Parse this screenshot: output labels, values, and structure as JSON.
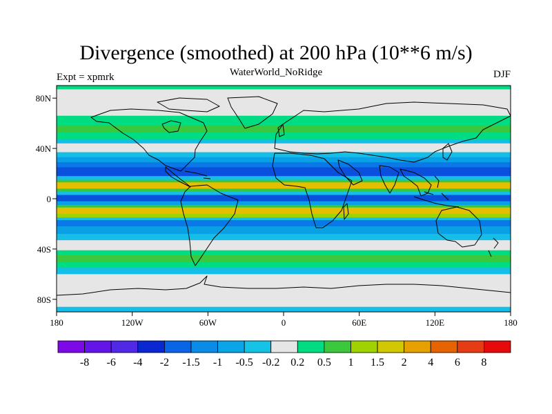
{
  "title": "Divergence (smoothed) at 200 hPa (10**6 m/s)",
  "subtitle_left": "Expt = xpmrk",
  "subtitle_center": "WaterWorld_NoRidge",
  "subtitle_right": "DJF",
  "map": {
    "projection": "cylindrical-equidistant",
    "lon_range": [
      -180,
      180
    ],
    "lat_range": [
      -90,
      90
    ],
    "lon_ticks": [
      {
        "value": -180,
        "label": "180"
      },
      {
        "value": -120,
        "label": "120W"
      },
      {
        "value": -60,
        "label": "60W"
      },
      {
        "value": 0,
        "label": "0"
      },
      {
        "value": 60,
        "label": "60E"
      },
      {
        "value": 120,
        "label": "120E"
      },
      {
        "value": 180,
        "label": "180"
      }
    ],
    "lat_ticks": [
      {
        "value": 80,
        "label": "80N"
      },
      {
        "value": 40,
        "label": "40N"
      },
      {
        "value": 0,
        "label": "0"
      },
      {
        "value": -40,
        "label": "40S"
      },
      {
        "value": -80,
        "label": "80S"
      }
    ],
    "bands": [
      {
        "lat_top": 90,
        "lat_bottom": 87,
        "level": "0.2 to 0.5",
        "color": "#00dc82"
      },
      {
        "lat_top": 87,
        "lat_bottom": 79,
        "level": "-0.2 to 0.2",
        "color": "#e6e6e6"
      },
      {
        "lat_top": 79,
        "lat_bottom": 66,
        "level": "-0.2 to 0.2",
        "color": "#e6e6e6"
      },
      {
        "lat_top": 66,
        "lat_bottom": 58,
        "level": "0.2 to 0.5",
        "color": "#00dc82"
      },
      {
        "lat_top": 58,
        "lat_bottom": 53,
        "level": "0.5 to 1",
        "color": "#3cc83c"
      },
      {
        "lat_top": 53,
        "lat_bottom": 47,
        "level": "0.2 to 0.5",
        "color": "#00dc82"
      },
      {
        "lat_top": 47,
        "lat_bottom": 44,
        "level": "-0.5 to -0.2",
        "color": "#14bee6"
      },
      {
        "lat_top": 44,
        "lat_bottom": 37,
        "level": "-0.2 to 0.2",
        "color": "#e6e6e6"
      },
      {
        "lat_top": 37,
        "lat_bottom": 33,
        "level": "-0.5 to -0.2",
        "color": "#14bee6"
      },
      {
        "lat_top": 33,
        "lat_bottom": 29,
        "level": "-1 to -0.5",
        "color": "#0aa0e6"
      },
      {
        "lat_top": 29,
        "lat_bottom": 25,
        "level": "-1.5 to -1",
        "color": "#0a78e6"
      },
      {
        "lat_top": 25,
        "lat_bottom": 18,
        "level": "-2 to -1.5",
        "color": "#0a50dc"
      },
      {
        "lat_top": 18,
        "lat_bottom": 15,
        "level": "-0.5 to -0.2",
        "color": "#14bee6"
      },
      {
        "lat_top": 15,
        "lat_bottom": 13,
        "level": "0.5 to 1",
        "color": "#3cc83c"
      },
      {
        "lat_top": 13,
        "lat_bottom": 8,
        "level": "1.5 to 2",
        "color": "#e6be00"
      },
      {
        "lat_top": 8,
        "lat_bottom": 6,
        "level": "0.5 to 1",
        "color": "#3cc83c"
      },
      {
        "lat_top": 6,
        "lat_bottom": 3,
        "level": "-0.5 to -0.2",
        "color": "#14bee6"
      },
      {
        "lat_top": 3,
        "lat_bottom": -2,
        "level": "-2 to -1.5",
        "color": "#0a50dc"
      },
      {
        "lat_top": -2,
        "lat_bottom": -5,
        "level": "-1 to -0.5",
        "color": "#0aa0e6"
      },
      {
        "lat_top": -5,
        "lat_bottom": -7,
        "level": "0.5 to 1",
        "color": "#3cc83c"
      },
      {
        "lat_top": -7,
        "lat_bottom": -12,
        "level": "1.5 to 2",
        "color": "#e6be00"
      },
      {
        "lat_top": -12,
        "lat_bottom": -15,
        "level": "1 to 1.5",
        "color": "#a0d200"
      },
      {
        "lat_top": -15,
        "lat_bottom": -17,
        "level": "-0.5 to -0.2",
        "color": "#14bee6"
      },
      {
        "lat_top": -17,
        "lat_bottom": -22,
        "level": "-1.5 to -1",
        "color": "#0a78e6"
      },
      {
        "lat_top": -22,
        "lat_bottom": -28,
        "level": "-1 to -0.5",
        "color": "#0aa0e6"
      },
      {
        "lat_top": -28,
        "lat_bottom": -33,
        "level": "-0.5 to -0.2",
        "color": "#14bee6"
      },
      {
        "lat_top": -33,
        "lat_bottom": -41,
        "level": "-0.2 to 0.2",
        "color": "#e6e6e6"
      },
      {
        "lat_top": -41,
        "lat_bottom": -45,
        "level": "0.2 to 0.5",
        "color": "#00dc82"
      },
      {
        "lat_top": -45,
        "lat_bottom": -50,
        "level": "0.5 to 1",
        "color": "#3cc83c"
      },
      {
        "lat_top": -50,
        "lat_bottom": -55,
        "level": "0.2 to 0.5",
        "color": "#00dc82"
      },
      {
        "lat_top": -55,
        "lat_bottom": -60,
        "level": "-0.5 to -0.2",
        "color": "#14bee6"
      },
      {
        "lat_top": -60,
        "lat_bottom": -86,
        "level": "-0.2 to 0.2",
        "color": "#e6e6e6"
      },
      {
        "lat_top": -86,
        "lat_bottom": -90,
        "level": "-0.5 to -0.2",
        "color": "#14bee6"
      }
    ]
  },
  "colorbar": {
    "colors": [
      "#7d0ae6",
      "#6414e6",
      "#5028e6",
      "#0a28d2",
      "#0a64e6",
      "#0a8ce6",
      "#0aa5e6",
      "#14c3e6",
      "#e6e6e6",
      "#00dc82",
      "#3cc83c",
      "#a0d200",
      "#d2c800",
      "#e6a000",
      "#e66400",
      "#e63c14",
      "#e60a0a"
    ],
    "labels": [
      "-8",
      "-6",
      "-4",
      "-2",
      "-1.5",
      "-1",
      "-0.5",
      "-0.2",
      "0.2",
      "0.5",
      "1",
      "1.5",
      "2",
      "4",
      "6",
      "8"
    ]
  }
}
